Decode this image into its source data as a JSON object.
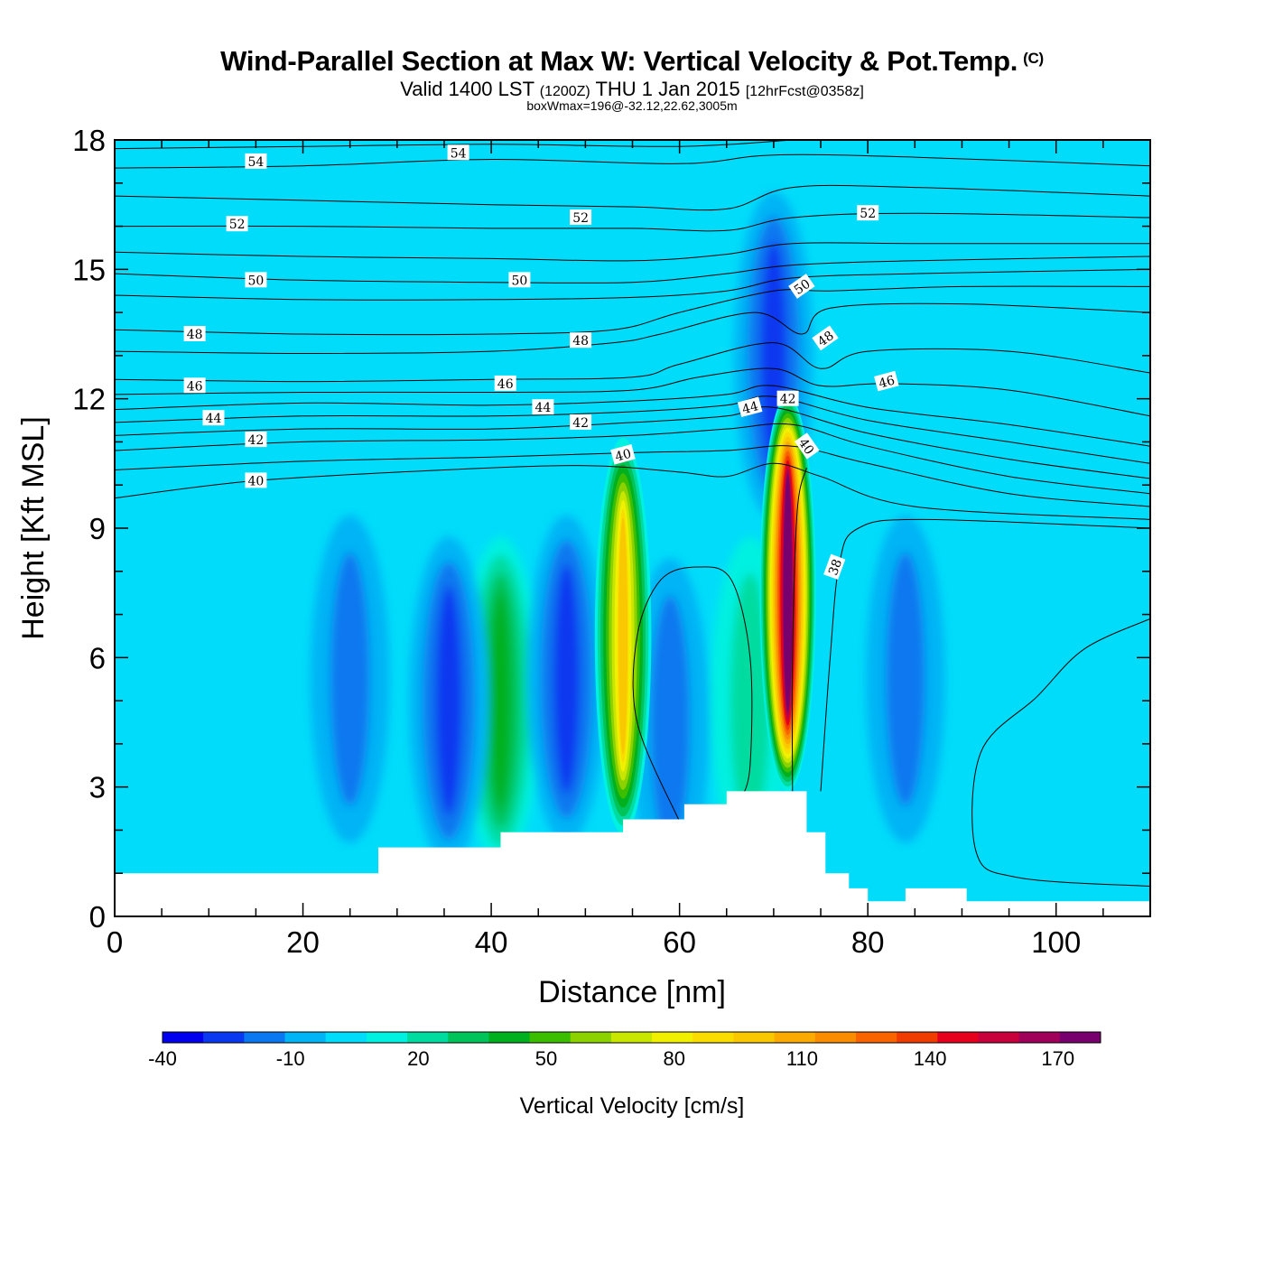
{
  "header": {
    "title": "Wind-Parallel Section at Max W: Vertical Velocity & Pot.Temp.",
    "copyright": "(C)",
    "valid_prefix": "Valid 1400 LST",
    "valid_utc": "(1200Z)",
    "valid_date": "THU 1 Jan 2015",
    "forecast": "[12hrFcst@0358z]",
    "box_info": "boxWmax=196@-32.12,22.62,3005m"
  },
  "chart_data": {
    "type": "heatmap",
    "title": "Wind-Parallel Section at Max W: Vertical Velocity & Pot.Temp.",
    "xlabel": "Distance [nm]",
    "ylabel": "Height [Kft MSL]",
    "xlim": [
      0,
      110
    ],
    "ylim": [
      0,
      18
    ],
    "x_ticks": [
      0,
      20,
      40,
      60,
      80,
      100
    ],
    "y_ticks": [
      0,
      3,
      6,
      9,
      12,
      15,
      18
    ],
    "colorbar": {
      "label": "Vertical Velocity [cm/s]",
      "levels": [
        -40,
        -30,
        -20,
        -10,
        0,
        10,
        20,
        30,
        40,
        50,
        60,
        70,
        80,
        90,
        100,
        110,
        120,
        130,
        140,
        150,
        160,
        170,
        180
      ],
      "tick_labels": [
        "-40",
        "-10",
        "20",
        "50",
        "80",
        "110",
        "140",
        "170"
      ],
      "colors": [
        "#0000ee",
        "#0a37f0",
        "#0a78f0",
        "#00b4f5",
        "#00dcfa",
        "#00f0e1",
        "#00dca0",
        "#00c35a",
        "#00b01e",
        "#3cbe00",
        "#8cd200",
        "#c8e600",
        "#f0f000",
        "#fadc00",
        "#fac800",
        "#faaa00",
        "#fa8c00",
        "#fa6400",
        "#f03c00",
        "#e6001e",
        "#c8003c",
        "#a0005a",
        "#78006e"
      ]
    },
    "background_color": "#00dcfa",
    "w_features": [
      {
        "x": 54,
        "z": 6.5,
        "w_max": 100,
        "sign": "updraft"
      },
      {
        "x": 71.5,
        "z": 7.5,
        "w_max": 196,
        "sign": "updraft"
      },
      {
        "x": 41,
        "z": 5,
        "w_max": 45,
        "sign": "updraft"
      },
      {
        "x": 35.5,
        "z": 5,
        "w_max": -38,
        "sign": "downdraft"
      },
      {
        "x": 48,
        "z": 5.5,
        "w_max": -33,
        "sign": "downdraft"
      },
      {
        "x": 25,
        "z": 5.5,
        "w_max": -22,
        "sign": "downdraft"
      },
      {
        "x": 59,
        "z": 4.5,
        "w_max": -20,
        "sign": "downdraft"
      },
      {
        "x": 70,
        "z": 13,
        "w_max": -30,
        "sign": "downdraft"
      },
      {
        "x": 84,
        "z": 5.5,
        "w_max": -20,
        "sign": "downdraft"
      },
      {
        "x": 67.5,
        "z": 5,
        "w_max": 20,
        "sign": "updraft"
      }
    ],
    "terrain": [
      [
        0,
        1.0
      ],
      [
        28,
        1.0
      ],
      [
        28,
        1.6
      ],
      [
        41,
        1.6
      ],
      [
        41,
        1.95
      ],
      [
        54,
        1.95
      ],
      [
        54,
        2.25
      ],
      [
        60.5,
        2.25
      ],
      [
        60.5,
        2.6
      ],
      [
        65,
        2.6
      ],
      [
        65,
        2.9
      ],
      [
        73.5,
        2.9
      ],
      [
        73.5,
        1.95
      ],
      [
        75.5,
        1.95
      ],
      [
        75.5,
        1.0
      ],
      [
        78,
        1.0
      ],
      [
        78,
        0.65
      ],
      [
        80,
        0.65
      ],
      [
        80,
        0.35
      ],
      [
        84,
        0.35
      ],
      [
        84,
        0.65
      ],
      [
        90.5,
        0.65
      ],
      [
        90.5,
        0.35
      ],
      [
        110,
        0.35
      ]
    ],
    "theta_contours": [
      {
        "value": 38,
        "points": [
          [
            60,
            2.2
          ],
          [
            55.5,
            4.5
          ],
          [
            55.5,
            6.5
          ],
          [
            58,
            7.8
          ],
          [
            62,
            8.1
          ],
          [
            65.5,
            7.8
          ],
          [
            67.5,
            6
          ],
          [
            67.5,
            3.5
          ],
          [
            66.5,
            2.7
          ]
        ]
      },
      {
        "value": 38,
        "points": [
          [
            72,
            2.9
          ],
          [
            72,
            6
          ],
          [
            72.5,
            9.4
          ],
          [
            73.5,
            10.4
          ]
        ]
      },
      {
        "value": 38,
        "points": [
          [
            75,
            2.9
          ],
          [
            76,
            6
          ],
          [
            77,
            8.2
          ],
          [
            79,
            9
          ],
          [
            86,
            9.2
          ],
          [
            110,
            9.0
          ]
        ]
      },
      {
        "value": 38,
        "points": [
          [
            110,
            6.9
          ],
          [
            103,
            6.2
          ],
          [
            98,
            5.1
          ],
          [
            92,
            3.8
          ],
          [
            91.5,
            1.5
          ],
          [
            96,
            0.9
          ],
          [
            110,
            0.7
          ]
        ]
      },
      {
        "value": 40,
        "points": [
          [
            0,
            9.7
          ],
          [
            15,
            10.1
          ],
          [
            35,
            10.35
          ],
          [
            50,
            10.45
          ],
          [
            60,
            10.3
          ],
          [
            65,
            10.2
          ],
          [
            70,
            10.5
          ],
          [
            75,
            10.2
          ],
          [
            85,
            9.5
          ],
          [
            110,
            9.2
          ]
        ]
      },
      {
        "value": 40,
        "points": [
          [
            0,
            10.35
          ],
          [
            20,
            10.55
          ],
          [
            40,
            10.65
          ],
          [
            55,
            10.75
          ],
          [
            65,
            10.8
          ],
          [
            72,
            10.9
          ],
          [
            80,
            10.5
          ],
          [
            95,
            9.8
          ],
          [
            110,
            9.5
          ]
        ]
      },
      {
        "value": 42,
        "points": [
          [
            0,
            10.8
          ],
          [
            20,
            11.0
          ],
          [
            40,
            11.05
          ],
          [
            55,
            11.15
          ],
          [
            65,
            11.3
          ],
          [
            72,
            11.4
          ],
          [
            80,
            10.9
          ],
          [
            95,
            10.2
          ],
          [
            110,
            9.8
          ]
        ]
      },
      {
        "value": 42,
        "points": [
          [
            0,
            11.15
          ],
          [
            20,
            11.3
          ],
          [
            40,
            11.3
          ],
          [
            55,
            11.45
          ],
          [
            65,
            11.6
          ],
          [
            70,
            11.8
          ],
          [
            80,
            11.2
          ],
          [
            95,
            10.6
          ],
          [
            110,
            10.15
          ]
        ]
      },
      {
        "value": 44,
        "points": [
          [
            0,
            11.45
          ],
          [
            20,
            11.6
          ],
          [
            40,
            11.6
          ],
          [
            55,
            11.7
          ],
          [
            65,
            11.85
          ],
          [
            70,
            12.05
          ],
          [
            80,
            11.5
          ],
          [
            95,
            11.0
          ],
          [
            110,
            10.5
          ]
        ]
      },
      {
        "value": 44,
        "points": [
          [
            0,
            11.75
          ],
          [
            20,
            11.9
          ],
          [
            40,
            11.85
          ],
          [
            55,
            11.95
          ],
          [
            65,
            12.1
          ],
          [
            70,
            12.3
          ],
          [
            80,
            11.8
          ],
          [
            95,
            11.4
          ],
          [
            110,
            10.9
          ]
        ]
      },
      {
        "value": 46,
        "points": [
          [
            0,
            12.1
          ],
          [
            20,
            12.15
          ],
          [
            40,
            12.15
          ],
          [
            55,
            12.2
          ],
          [
            62,
            12.5
          ],
          [
            70,
            12.7
          ],
          [
            75,
            12.3
          ],
          [
            82,
            12.35
          ],
          [
            95,
            12.2
          ],
          [
            110,
            11.6
          ]
        ]
      },
      {
        "value": 46,
        "points": [
          [
            0,
            12.45
          ],
          [
            20,
            12.4
          ],
          [
            40,
            12.45
          ],
          [
            55,
            12.5
          ],
          [
            60,
            12.8
          ],
          [
            70,
            13.3
          ],
          [
            75,
            12.7
          ],
          [
            80,
            13.1
          ],
          [
            95,
            13.1
          ],
          [
            110,
            12.6
          ]
        ]
      },
      {
        "value": 48,
        "points": [
          [
            0,
            13.1
          ],
          [
            20,
            13.05
          ],
          [
            40,
            13.1
          ],
          [
            53,
            13.3
          ],
          [
            58,
            13.5
          ],
          [
            68,
            14.0
          ],
          [
            73,
            13.5
          ],
          [
            76,
            14.1
          ],
          [
            90,
            14.2
          ],
          [
            110,
            14.0
          ]
        ]
      },
      {
        "value": 48,
        "points": [
          [
            0,
            13.6
          ],
          [
            20,
            13.5
          ],
          [
            40,
            13.5
          ],
          [
            53,
            13.6
          ],
          [
            60,
            14.0
          ],
          [
            70,
            14.5
          ],
          [
            76,
            14.5
          ],
          [
            90,
            14.6
          ],
          [
            110,
            14.6
          ]
        ]
      },
      {
        "value": 50,
        "points": [
          [
            0,
            14.4
          ],
          [
            20,
            14.3
          ],
          [
            40,
            14.3
          ],
          [
            55,
            14.35
          ],
          [
            65,
            14.5
          ],
          [
            72,
            14.8
          ],
          [
            85,
            14.9
          ],
          [
            110,
            15.0
          ]
        ]
      },
      {
        "value": 50,
        "points": [
          [
            0,
            14.9
          ],
          [
            20,
            14.75
          ],
          [
            40,
            14.7
          ],
          [
            55,
            14.7
          ],
          [
            65,
            14.9
          ],
          [
            72,
            15.1
          ],
          [
            85,
            15.2
          ],
          [
            110,
            15.3
          ]
        ]
      },
      {
        "value": 50,
        "points": [
          [
            0,
            15.4
          ],
          [
            20,
            15.3
          ],
          [
            40,
            15.25
          ],
          [
            55,
            15.2
          ],
          [
            65,
            15.35
          ],
          [
            72,
            15.6
          ],
          [
            85,
            15.6
          ],
          [
            110,
            15.6
          ]
        ]
      },
      {
        "value": 52,
        "points": [
          [
            0,
            16.0
          ],
          [
            20,
            16.0
          ],
          [
            40,
            15.95
          ],
          [
            55,
            15.95
          ],
          [
            65,
            15.9
          ],
          [
            72,
            16.2
          ],
          [
            85,
            16.3
          ],
          [
            110,
            16.2
          ]
        ]
      },
      {
        "value": 52,
        "points": [
          [
            0,
            16.7
          ],
          [
            20,
            16.6
          ],
          [
            40,
            16.5
          ],
          [
            55,
            16.45
          ],
          [
            65,
            16.4
          ],
          [
            72,
            16.9
          ],
          [
            85,
            16.9
          ],
          [
            110,
            16.7
          ]
        ]
      },
      {
        "value": 54,
        "points": [
          [
            0,
            17.35
          ],
          [
            20,
            17.4
          ],
          [
            40,
            17.55
          ],
          [
            60,
            17.45
          ],
          [
            70,
            17.65
          ],
          [
            85,
            17.6
          ],
          [
            110,
            17.4
          ]
        ]
      },
      {
        "value": 54,
        "points": [
          [
            0,
            17.8
          ],
          [
            20,
            17.85
          ],
          [
            40,
            17.9
          ],
          [
            60,
            17.85
          ],
          [
            72,
            18.0
          ]
        ]
      }
    ],
    "contour_labels": [
      {
        "text": "54",
        "x": 15,
        "z": 17.5,
        "rot": 0
      },
      {
        "text": "54",
        "x": 36.5,
        "z": 17.7,
        "rot": 0
      },
      {
        "text": "52",
        "x": 13,
        "z": 16.05,
        "rot": 0
      },
      {
        "text": "52",
        "x": 49.5,
        "z": 16.2,
        "rot": 0
      },
      {
        "text": "52",
        "x": 80,
        "z": 16.3,
        "rot": 0
      },
      {
        "text": "50",
        "x": 15,
        "z": 14.75,
        "rot": 0
      },
      {
        "text": "50",
        "x": 43,
        "z": 14.75,
        "rot": 0
      },
      {
        "text": "50",
        "x": 73,
        "z": 14.6,
        "rot": -35
      },
      {
        "text": "48",
        "x": 8.5,
        "z": 13.5,
        "rot": 0
      },
      {
        "text": "48",
        "x": 49.5,
        "z": 13.35,
        "rot": 0
      },
      {
        "text": "48",
        "x": 75.5,
        "z": 13.4,
        "rot": -35
      },
      {
        "text": "46",
        "x": 8.5,
        "z": 12.3,
        "rot": 0
      },
      {
        "text": "46",
        "x": 41.5,
        "z": 12.35,
        "rot": 0
      },
      {
        "text": "46",
        "x": 82,
        "z": 12.4,
        "rot": -15
      },
      {
        "text": "44",
        "x": 10.5,
        "z": 11.55,
        "rot": 0
      },
      {
        "text": "44",
        "x": 45.5,
        "z": 11.8,
        "rot": 0
      },
      {
        "text": "44",
        "x": 67.5,
        "z": 11.8,
        "rot": -15
      },
      {
        "text": "42",
        "x": 15,
        "z": 11.05,
        "rot": 0
      },
      {
        "text": "42",
        "x": 49.5,
        "z": 11.45,
        "rot": 0
      },
      {
        "text": "42",
        "x": 71.5,
        "z": 12.0,
        "rot": 0
      },
      {
        "text": "40",
        "x": 15,
        "z": 10.1,
        "rot": 0
      },
      {
        "text": "40",
        "x": 54,
        "z": 10.7,
        "rot": -15
      },
      {
        "text": "40",
        "x": 73.5,
        "z": 10.9,
        "rot": 55
      },
      {
        "text": "38",
        "x": 76.5,
        "z": 8.1,
        "rot": -70
      }
    ]
  }
}
